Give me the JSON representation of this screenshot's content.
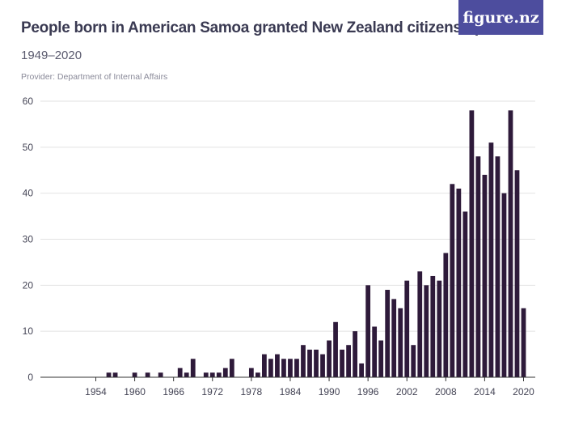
{
  "header": {
    "title": "People born in American Samoa granted New Zealand citizenship",
    "subtitle": "1949–2020",
    "provider": "Provider: Department of Internal Affairs",
    "logo": "figure.nz"
  },
  "colors": {
    "bar": "#2e1a3a",
    "grid": "#e2e2e2",
    "axis": "#333333",
    "logo_bg": "#4d4d9e"
  },
  "chart_data": {
    "type": "bar",
    "title": "People born in American Samoa granted New Zealand citizenship",
    "subtitle": "1949–2020",
    "xlabel": "",
    "ylabel": "",
    "ylim": [
      0,
      60
    ],
    "yticks": [
      0,
      10,
      20,
      30,
      40,
      50,
      60
    ],
    "xticks": [
      1954,
      1960,
      1966,
      1972,
      1978,
      1984,
      1990,
      1996,
      2002,
      2008,
      2014,
      2020
    ],
    "grid": true,
    "x": [
      1949,
      1950,
      1951,
      1952,
      1953,
      1954,
      1955,
      1956,
      1957,
      1958,
      1959,
      1960,
      1961,
      1962,
      1963,
      1964,
      1965,
      1966,
      1967,
      1968,
      1969,
      1970,
      1971,
      1972,
      1973,
      1974,
      1975,
      1976,
      1977,
      1978,
      1979,
      1980,
      1981,
      1982,
      1983,
      1984,
      1985,
      1986,
      1987,
      1988,
      1989,
      1990,
      1991,
      1992,
      1993,
      1994,
      1995,
      1996,
      1997,
      1998,
      1999,
      2000,
      2001,
      2002,
      2003,
      2004,
      2005,
      2006,
      2007,
      2008,
      2009,
      2010,
      2011,
      2012,
      2013,
      2014,
      2015,
      2016,
      2017,
      2018,
      2019,
      2020
    ],
    "values": [
      0,
      0,
      0,
      0,
      0,
      0,
      0,
      1,
      1,
      0,
      0,
      1,
      0,
      1,
      0,
      1,
      0,
      0,
      2,
      1,
      4,
      0,
      1,
      1,
      1,
      2,
      4,
      0,
      0,
      2,
      1,
      5,
      4,
      5,
      4,
      4,
      4,
      7,
      6,
      6,
      5,
      8,
      12,
      6,
      7,
      10,
      3,
      20,
      11,
      8,
      19,
      17,
      15,
      21,
      7,
      23,
      20,
      22,
      21,
      27,
      42,
      41,
      36,
      58,
      48,
      44,
      51,
      48,
      40,
      58,
      45,
      15
    ]
  }
}
